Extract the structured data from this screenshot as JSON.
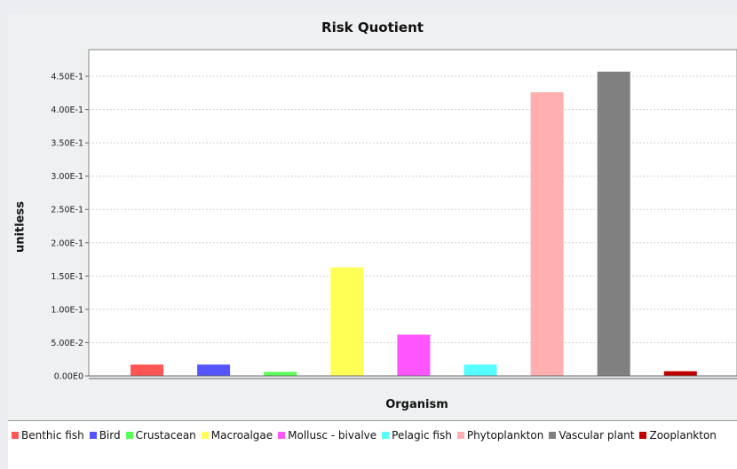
{
  "chart_data": {
    "type": "bar",
    "title": "Risk Quotient",
    "xlabel": "Organism",
    "ylabel": "unitless",
    "ylim": [
      0,
      0.49
    ],
    "yticks": [
      0,
      0.05,
      0.1,
      0.15,
      0.2,
      0.25,
      0.3,
      0.35,
      0.4,
      0.45
    ],
    "ytick_labels": [
      "0.00E0",
      "5.00E-2",
      "1.00E-1",
      "1.50E-1",
      "2.00E-1",
      "2.50E-1",
      "3.00E-1",
      "3.50E-1",
      "4.00E-1",
      "4.50E-1"
    ],
    "grid": true,
    "legend_position": "bottom",
    "categories": [
      "Benthic fish",
      "Bird",
      "Crustacean",
      "Macroalgae",
      "Mollusc - bivalve",
      "Pelagic fish",
      "Phytoplankton",
      "Vascular plant",
      "Zooplankton"
    ],
    "values": [
      0.017,
      0.017,
      0.006,
      0.163,
      0.062,
      0.017,
      0.426,
      0.457,
      0.007
    ],
    "colors": [
      "#ff5555",
      "#5555ff",
      "#55ff55",
      "#ffff55",
      "#ff55ff",
      "#55ffff",
      "#ffafaf",
      "#808080",
      "#c00000"
    ]
  }
}
